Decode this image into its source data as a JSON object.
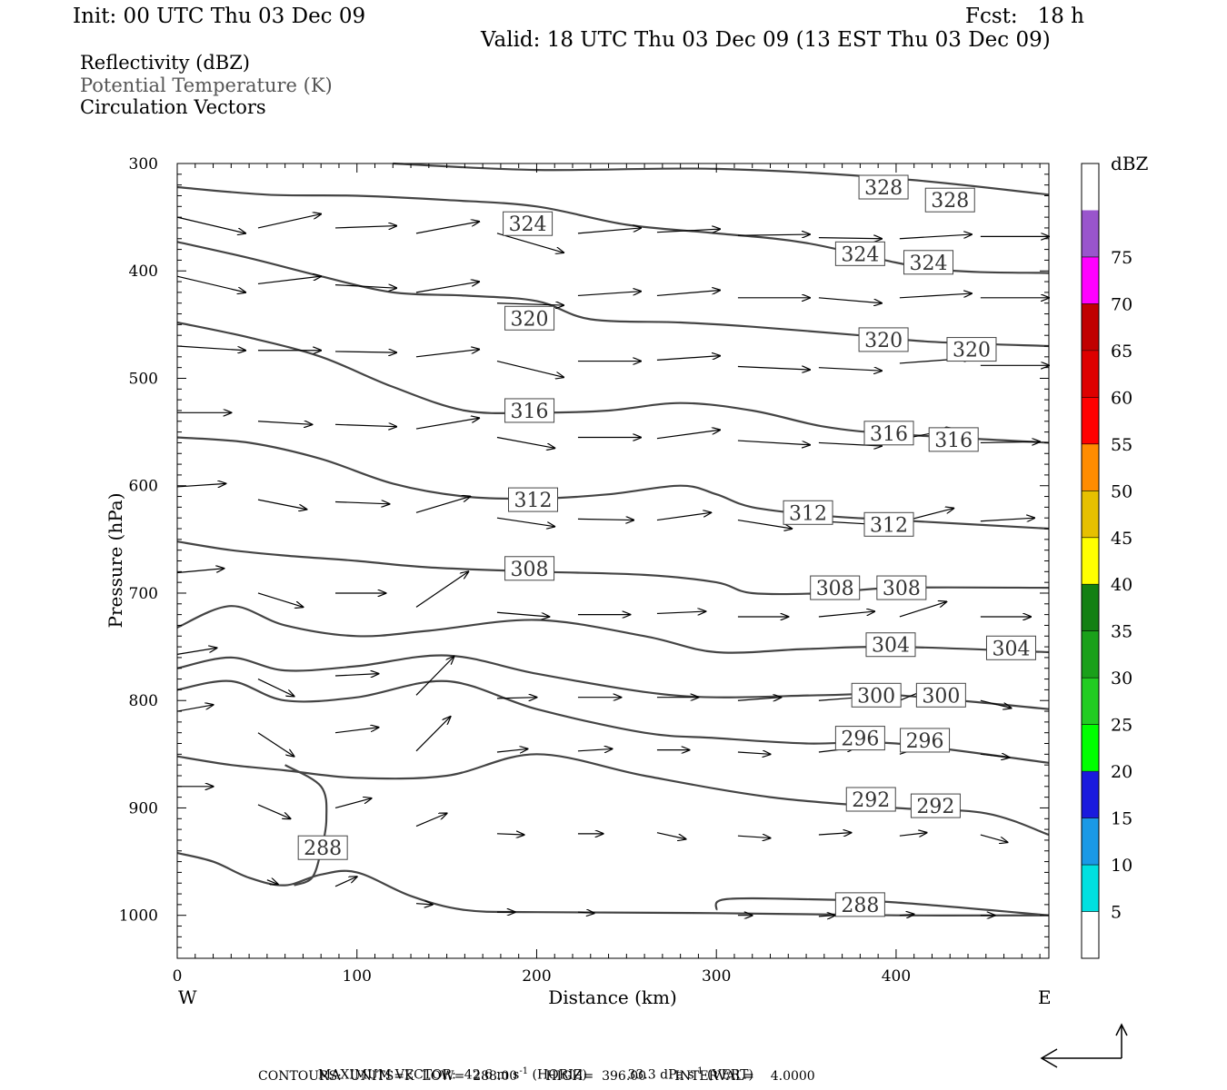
{
  "header": {
    "init": "Init: 00 UTC Thu 03 Dec 09",
    "fcst": "Fcst:   18 h",
    "valid": "Valid: 18 UTC Thu 03 Dec 09 (13 EST Thu 03 Dec 09)"
  },
  "legend": {
    "line1": "Reflectivity (dBZ)",
    "line2": "Potential Temperature (K)",
    "line3": "Circulation Vectors"
  },
  "footer": {
    "max_vector_label": "MAXIMUM VECTOR:",
    "horiz": "42.6 m s",
    "horiz_exp": "-1",
    "horiz_tag": "(HORIZ)",
    "vert": "33.3 dPa s",
    "vert_exp": "-1",
    "vert_tag": "(VERT)",
    "contours": "CONTOURS:  UNITS=K  LOW=  288.00       HIGH=  396.00       INTERVAL=    4.0000"
  },
  "colors": {
    "contour": "#444444",
    "vector": "#000000",
    "axis": "#000000"
  },
  "chart_data": {
    "type": "cross-section",
    "xlabel": "Distance (km)",
    "ylabel": "Pressure (hPa)",
    "xlim": [
      0,
      485
    ],
    "ylim": [
      1040,
      300
    ],
    "x_ticks": [
      "0",
      "100",
      "200",
      "300",
      "400"
    ],
    "x_tick_values": [
      0,
      100,
      200,
      300,
      400
    ],
    "y_ticks": [
      "300",
      "400",
      "500",
      "600",
      "700",
      "800",
      "900",
      "1000"
    ],
    "y_tick_values": [
      300,
      400,
      500,
      600,
      700,
      800,
      900,
      1000
    ],
    "left_end_label": "W",
    "right_end_label": "E",
    "colorbar": {
      "title": "dBZ",
      "levels": [
        "5",
        "10",
        "15",
        "20",
        "25",
        "30",
        "35",
        "40",
        "45",
        "50",
        "55",
        "60",
        "65",
        "70",
        "75"
      ],
      "colors": [
        "#ffffff",
        "#00e0e0",
        "#1a99e6",
        "#1a1add",
        "#00ff00",
        "#22cc22",
        "#1aa01a",
        "#138013",
        "#ffff00",
        "#e6c000",
        "#ff8c00",
        "#ff0000",
        "#dd0000",
        "#c00000",
        "#ff00ff",
        "#9955cc",
        "#ffffff"
      ]
    },
    "theta_contours": [
      {
        "label": "328",
        "points": [
          [
            120,
            300
          ],
          [
            200,
            306
          ],
          [
            300,
            305
          ],
          [
            400,
            314
          ],
          [
            485,
            329
          ]
        ],
        "labels_at": [
          [
            393,
            322
          ],
          [
            430,
            334
          ]
        ]
      },
      {
        "label": "324",
        "points": [
          [
            0,
            322
          ],
          [
            50,
            329
          ],
          [
            100,
            330
          ],
          [
            150,
            334
          ],
          [
            200,
            340
          ],
          [
            250,
            357
          ],
          [
            300,
            365
          ],
          [
            350,
            374
          ],
          [
            420,
            398
          ],
          [
            485,
            402
          ]
        ],
        "labels_at": [
          [
            195,
            356
          ],
          [
            380,
            384
          ],
          [
            418,
            392
          ]
        ]
      },
      {
        "label": "320",
        "points": [
          [
            0,
            373
          ],
          [
            40,
            388
          ],
          [
            80,
            405
          ],
          [
            120,
            420
          ],
          [
            160,
            423
          ],
          [
            200,
            428
          ],
          [
            230,
            445
          ],
          [
            280,
            448
          ],
          [
            320,
            452
          ],
          [
            380,
            460
          ],
          [
            420,
            466
          ],
          [
            485,
            470
          ]
        ],
        "labels_at": [
          [
            196,
            444
          ],
          [
            393,
            464
          ],
          [
            442,
            473
          ]
        ]
      },
      {
        "label": "316",
        "points": [
          [
            0,
            448
          ],
          [
            40,
            462
          ],
          [
            80,
            480
          ],
          [
            120,
            508
          ],
          [
            160,
            530
          ],
          [
            200,
            532
          ],
          [
            240,
            530
          ],
          [
            280,
            523
          ],
          [
            320,
            530
          ],
          [
            360,
            545
          ],
          [
            400,
            552
          ],
          [
            485,
            560
          ]
        ],
        "labels_at": [
          [
            196,
            530
          ],
          [
            396,
            551
          ],
          [
            432,
            557
          ]
        ]
      },
      {
        "label": "312",
        "points": [
          [
            0,
            555
          ],
          [
            40,
            560
          ],
          [
            80,
            575
          ],
          [
            120,
            598
          ],
          [
            160,
            610
          ],
          [
            200,
            612
          ],
          [
            240,
            608
          ],
          [
            280,
            600
          ],
          [
            300,
            608
          ],
          [
            320,
            620
          ],
          [
            360,
            628
          ],
          [
            400,
            632
          ],
          [
            485,
            640
          ]
        ],
        "labels_at": [
          [
            198,
            613
          ],
          [
            351,
            625
          ],
          [
            396,
            636
          ]
        ]
      },
      {
        "label": "308",
        "points": [
          [
            0,
            652
          ],
          [
            30,
            660
          ],
          [
            60,
            665
          ],
          [
            100,
            670
          ],
          [
            140,
            676
          ],
          [
            200,
            680
          ],
          [
            260,
            683
          ],
          [
            300,
            690
          ],
          [
            320,
            700
          ],
          [
            360,
            700
          ],
          [
            400,
            695
          ],
          [
            485,
            695
          ]
        ],
        "labels_at": [
          [
            196,
            677
          ],
          [
            366,
            695
          ],
          [
            403,
            695
          ]
        ]
      },
      {
        "label": "304",
        "points": [
          [
            0,
            732
          ],
          [
            30,
            712
          ],
          [
            60,
            730
          ],
          [
            100,
            740
          ],
          [
            140,
            735
          ],
          [
            200,
            725
          ],
          [
            260,
            740
          ],
          [
            300,
            755
          ],
          [
            350,
            752
          ],
          [
            400,
            750
          ],
          [
            485,
            755
          ]
        ],
        "labels_at": [
          [
            397,
            748
          ],
          [
            464,
            751
          ]
        ]
      },
      {
        "label": "300",
        "points": [
          [
            0,
            770
          ],
          [
            30,
            760
          ],
          [
            60,
            772
          ],
          [
            100,
            768
          ],
          [
            150,
            758
          ],
          [
            200,
            775
          ],
          [
            260,
            792
          ],
          [
            300,
            797
          ],
          [
            360,
            795
          ],
          [
            400,
            795
          ],
          [
            485,
            808
          ]
        ],
        "labels_at": [
          [
            389,
            795
          ],
          [
            425,
            795
          ]
        ]
      },
      {
        "label": "296",
        "points": [
          [
            0,
            790
          ],
          [
            30,
            782
          ],
          [
            60,
            800
          ],
          [
            100,
            797
          ],
          [
            150,
            782
          ],
          [
            200,
            808
          ],
          [
            260,
            830
          ],
          [
            300,
            835
          ],
          [
            350,
            840
          ],
          [
            400,
            840
          ],
          [
            485,
            858
          ]
        ],
        "labels_at": [
          [
            380,
            835
          ],
          [
            416,
            837
          ]
        ]
      },
      {
        "label": "292",
        "points": [
          [
            0,
            852
          ],
          [
            30,
            860
          ],
          [
            60,
            865
          ],
          [
            100,
            872
          ],
          [
            150,
            870
          ],
          [
            200,
            850
          ],
          [
            260,
            870
          ],
          [
            330,
            890
          ],
          [
            400,
            900
          ],
          [
            450,
            905
          ],
          [
            485,
            925
          ]
        ],
        "labels_at": [
          [
            386,
            892
          ],
          [
            422,
            898
          ]
        ]
      },
      {
        "label": "288",
        "points": [
          [
            0,
            942
          ],
          [
            20,
            950
          ],
          [
            40,
            965
          ],
          [
            60,
            972
          ],
          [
            80,
            962
          ],
          [
            100,
            960
          ],
          [
            130,
            982
          ],
          [
            160,
            995
          ],
          [
            200,
            997
          ],
          [
            300,
            998
          ],
          [
            400,
            1000
          ],
          [
            485,
            1000
          ]
        ],
        "labels_at": [
          [
            81,
            937
          ],
          [
            380,
            990
          ]
        ]
      },
      {
        "label": "288",
        "points": [
          [
            65,
            972
          ],
          [
            75,
            965
          ],
          [
            80,
            940
          ],
          [
            83,
            910
          ],
          [
            80,
            880
          ],
          [
            60,
            860
          ]
        ],
        "labels_at": []
      },
      {
        "label": "288",
        "points": [
          [
            300,
            995
          ],
          [
            305,
            985
          ],
          [
            350,
            985
          ],
          [
            400,
            988
          ],
          [
            485,
            1000
          ]
        ],
        "labels_at": []
      }
    ],
    "circulation_vectors": [
      [
        0,
        350,
        38,
        365
      ],
      [
        45,
        360,
        80,
        347
      ],
      [
        88,
        360,
        122,
        358
      ],
      [
        133,
        365,
        168,
        354
      ],
      [
        178,
        365,
        215,
        383
      ],
      [
        223,
        365,
        258,
        360
      ],
      [
        267,
        364,
        302,
        361
      ],
      [
        312,
        367,
        352,
        366
      ],
      [
        357,
        369,
        392,
        370
      ],
      [
        402,
        370,
        442,
        366
      ],
      [
        447,
        368,
        485,
        368
      ],
      [
        0,
        405,
        38,
        420
      ],
      [
        45,
        412,
        80,
        405
      ],
      [
        88,
        413,
        122,
        416
      ],
      [
        133,
        420,
        168,
        410
      ],
      [
        178,
        430,
        215,
        432
      ],
      [
        223,
        423,
        258,
        419
      ],
      [
        267,
        423,
        302,
        418
      ],
      [
        312,
        425,
        352,
        425
      ],
      [
        357,
        425,
        392,
        430
      ],
      [
        402,
        425,
        442,
        421
      ],
      [
        447,
        425,
        485,
        425
      ],
      [
        0,
        470,
        38,
        474
      ],
      [
        45,
        474,
        80,
        474
      ],
      [
        88,
        475,
        122,
        476
      ],
      [
        133,
        480,
        168,
        473
      ],
      [
        178,
        484,
        215,
        499
      ],
      [
        223,
        484,
        258,
        484
      ],
      [
        267,
        483,
        302,
        479
      ],
      [
        312,
        489,
        352,
        492
      ],
      [
        357,
        490,
        392,
        493
      ],
      [
        402,
        486,
        442,
        481
      ],
      [
        447,
        488,
        485,
        488
      ],
      [
        0,
        532,
        30,
        532
      ],
      [
        45,
        540,
        75,
        543
      ],
      [
        88,
        543,
        122,
        545
      ],
      [
        133,
        547,
        168,
        537
      ],
      [
        178,
        555,
        210,
        565
      ],
      [
        223,
        555,
        258,
        555
      ],
      [
        267,
        556,
        302,
        548
      ],
      [
        312,
        558,
        352,
        562
      ],
      [
        357,
        560,
        392,
        563
      ],
      [
        402,
        557,
        432,
        547
      ],
      [
        447,
        560,
        480,
        559
      ],
      [
        0,
        601,
        27,
        598
      ],
      [
        45,
        613,
        72,
        622
      ],
      [
        88,
        615,
        118,
        617
      ],
      [
        133,
        625,
        163,
        610
      ],
      [
        178,
        630,
        210,
        638
      ],
      [
        223,
        631,
        254,
        632
      ],
      [
        267,
        632,
        297,
        625
      ],
      [
        312,
        632,
        342,
        640
      ],
      [
        357,
        633,
        388,
        636
      ],
      [
        402,
        634,
        432,
        621
      ],
      [
        447,
        633,
        477,
        630
      ],
      [
        0,
        681,
        26,
        677
      ],
      [
        45,
        700,
        70,
        713
      ],
      [
        88,
        700,
        116,
        700
      ],
      [
        133,
        713,
        162,
        680
      ],
      [
        178,
        718,
        207,
        722
      ],
      [
        223,
        720,
        252,
        720
      ],
      [
        267,
        719,
        294,
        717
      ],
      [
        312,
        722,
        340,
        722
      ],
      [
        357,
        722,
        388,
        717
      ],
      [
        402,
        722,
        428,
        708
      ],
      [
        447,
        722,
        475,
        722
      ],
      [
        0,
        757,
        22,
        751
      ],
      [
        45,
        780,
        65,
        796
      ],
      [
        88,
        777,
        112,
        775
      ],
      [
        133,
        795,
        154,
        759
      ],
      [
        178,
        798,
        200,
        797
      ],
      [
        223,
        797,
        247,
        797
      ],
      [
        267,
        797,
        290,
        797
      ],
      [
        312,
        800,
        336,
        797
      ],
      [
        357,
        800,
        380,
        797
      ],
      [
        402,
        800,
        422,
        786
      ],
      [
        447,
        800,
        464,
        807
      ],
      [
        0,
        810,
        20,
        804
      ],
      [
        45,
        830,
        65,
        852
      ],
      [
        88,
        830,
        112,
        825
      ],
      [
        133,
        847,
        152,
        815
      ],
      [
        178,
        848,
        195,
        845
      ],
      [
        223,
        847,
        242,
        845
      ],
      [
        267,
        846,
        285,
        846
      ],
      [
        312,
        848,
        330,
        850
      ],
      [
        357,
        848,
        377,
        844
      ],
      [
        402,
        850,
        420,
        840
      ],
      [
        447,
        850,
        463,
        853
      ],
      [
        0,
        880,
        20,
        880
      ],
      [
        45,
        897,
        63,
        910
      ],
      [
        88,
        900,
        108,
        891
      ],
      [
        133,
        917,
        150,
        905
      ],
      [
        178,
        924,
        193,
        925
      ],
      [
        223,
        924,
        237,
        924
      ],
      [
        267,
        923,
        283,
        929
      ],
      [
        312,
        926,
        330,
        928
      ],
      [
        357,
        925,
        375,
        923
      ],
      [
        402,
        926,
        417,
        923
      ],
      [
        447,
        925,
        462,
        932
      ],
      [
        50,
        967,
        56,
        971
      ],
      [
        88,
        973,
        100,
        964
      ],
      [
        133,
        989,
        142,
        990
      ],
      [
        178,
        997,
        188,
        997
      ],
      [
        223,
        997,
        232,
        998
      ],
      [
        312,
        1000,
        320,
        1000
      ],
      [
        357,
        1001,
        366,
        1000
      ],
      [
        402,
        1000,
        410,
        999
      ],
      [
        447,
        1000,
        455,
        1000
      ]
    ]
  }
}
